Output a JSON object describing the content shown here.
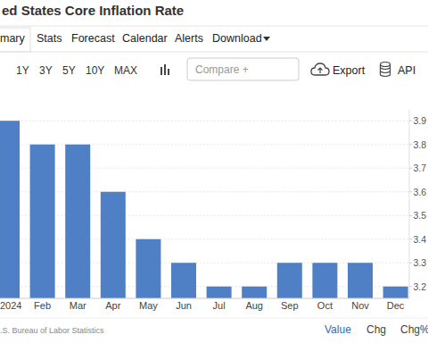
{
  "page": {
    "tabs": [
      "mary",
      "Stats",
      "Forecast",
      "Calendar",
      "Alerts",
      "Download"
    ],
    "ranges": [
      "1Y",
      "3Y",
      "5Y",
      "10Y",
      "MAX"
    ],
    "compare": "Compare +",
    "export": "Export",
    "api": "API",
    "source": ".S. Bureau of Labor Statistics",
    "views": [
      "Value",
      "Chg",
      "Chg%"
    ]
  },
  "chart_data": {
    "type": "bar",
    "title": "ed States Core Inflation Rate",
    "categories": [
      "2024",
      "Feb",
      "Mar",
      "Apr",
      "May",
      "Jun",
      "Jul",
      "Aug",
      "Sep",
      "Oct",
      "Nov",
      "Dec"
    ],
    "values": [
      3.9,
      3.8,
      3.8,
      3.6,
      3.4,
      3.3,
      3.2,
      3.2,
      3.3,
      3.3,
      3.3,
      3.2
    ],
    "color": "#4f7fc4",
    "ylim": [
      3.15,
      3.95
    ],
    "yticks": [
      3.2,
      3.3,
      3.4,
      3.5,
      3.6,
      3.7,
      3.8,
      3.9
    ],
    "grid": true
  }
}
